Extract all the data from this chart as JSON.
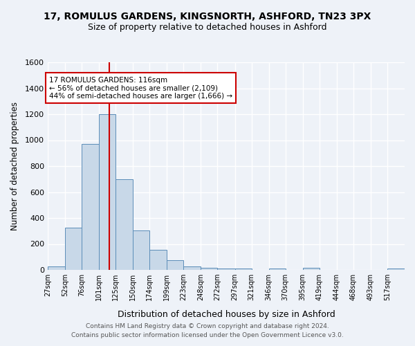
{
  "title": "17, ROMULUS GARDENS, KINGSNORTH, ASHFORD, TN23 3PX",
  "subtitle": "Size of property relative to detached houses in Ashford",
  "xlabel": "Distribution of detached houses by size in Ashford",
  "ylabel": "Number of detached properties",
  "footer_line1": "Contains HM Land Registry data © Crown copyright and database right 2024.",
  "footer_line2": "Contains public sector information licensed under the Open Government Licence v3.0.",
  "bar_labels": [
    "27sqm",
    "52sqm",
    "76sqm",
    "101sqm",
    "125sqm",
    "150sqm",
    "174sqm",
    "199sqm",
    "223sqm",
    "248sqm",
    "272sqm",
    "297sqm",
    "321sqm",
    "346sqm",
    "370sqm",
    "395sqm",
    "419sqm",
    "444sqm",
    "468sqm",
    "493sqm",
    "517sqm"
  ],
  "bar_values": [
    28,
    325,
    970,
    1200,
    700,
    305,
    155,
    75,
    28,
    15,
    10,
    10,
    0,
    12,
    0,
    15,
    0,
    0,
    0,
    0,
    12
  ],
  "bar_color": "#c8d8e8",
  "bar_edge_color": "#5b8db8",
  "background_color": "#eef2f8",
  "grid_color": "#ffffff",
  "annotation_text": "17 ROMULUS GARDENS: 116sqm\n← 56% of detached houses are smaller (2,109)\n44% of semi-detached houses are larger (1,666) →",
  "annotation_box_color": "#ffffff",
  "annotation_box_edge": "#cc0000",
  "vline_x": 116,
  "vline_color": "#cc0000",
  "ylim": [
    0,
    1600
  ],
  "bin_edges": [
    27,
    52,
    76,
    101,
    125,
    150,
    174,
    199,
    223,
    248,
    272,
    297,
    321,
    346,
    370,
    395,
    419,
    444,
    468,
    493,
    517,
    542
  ]
}
